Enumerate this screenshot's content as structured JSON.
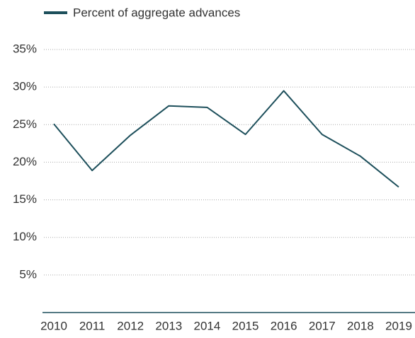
{
  "chart_data": {
    "type": "line",
    "categories": [
      "2010",
      "2011",
      "2012",
      "2013",
      "2014",
      "2015",
      "2016",
      "2017",
      "2018",
      "2019"
    ],
    "series": [
      {
        "name": "Percent of aggregate advances",
        "color": "#1d4f5b",
        "values": [
          25.1,
          18.9,
          23.6,
          27.5,
          27.3,
          23.7,
          29.5,
          23.7,
          20.8,
          16.7
        ]
      }
    ],
    "ylim": [
      0,
      35
    ],
    "yticks": [
      {
        "value": 5,
        "label": "5%"
      },
      {
        "value": 10,
        "label": "10%"
      },
      {
        "value": 15,
        "label": "15%"
      },
      {
        "value": 20,
        "label": "20%"
      },
      {
        "value": 25,
        "label": "25%"
      },
      {
        "value": 30,
        "label": "30%"
      },
      {
        "value": 35,
        "label": "35%"
      }
    ],
    "grid": true,
    "legend": "top-left"
  }
}
